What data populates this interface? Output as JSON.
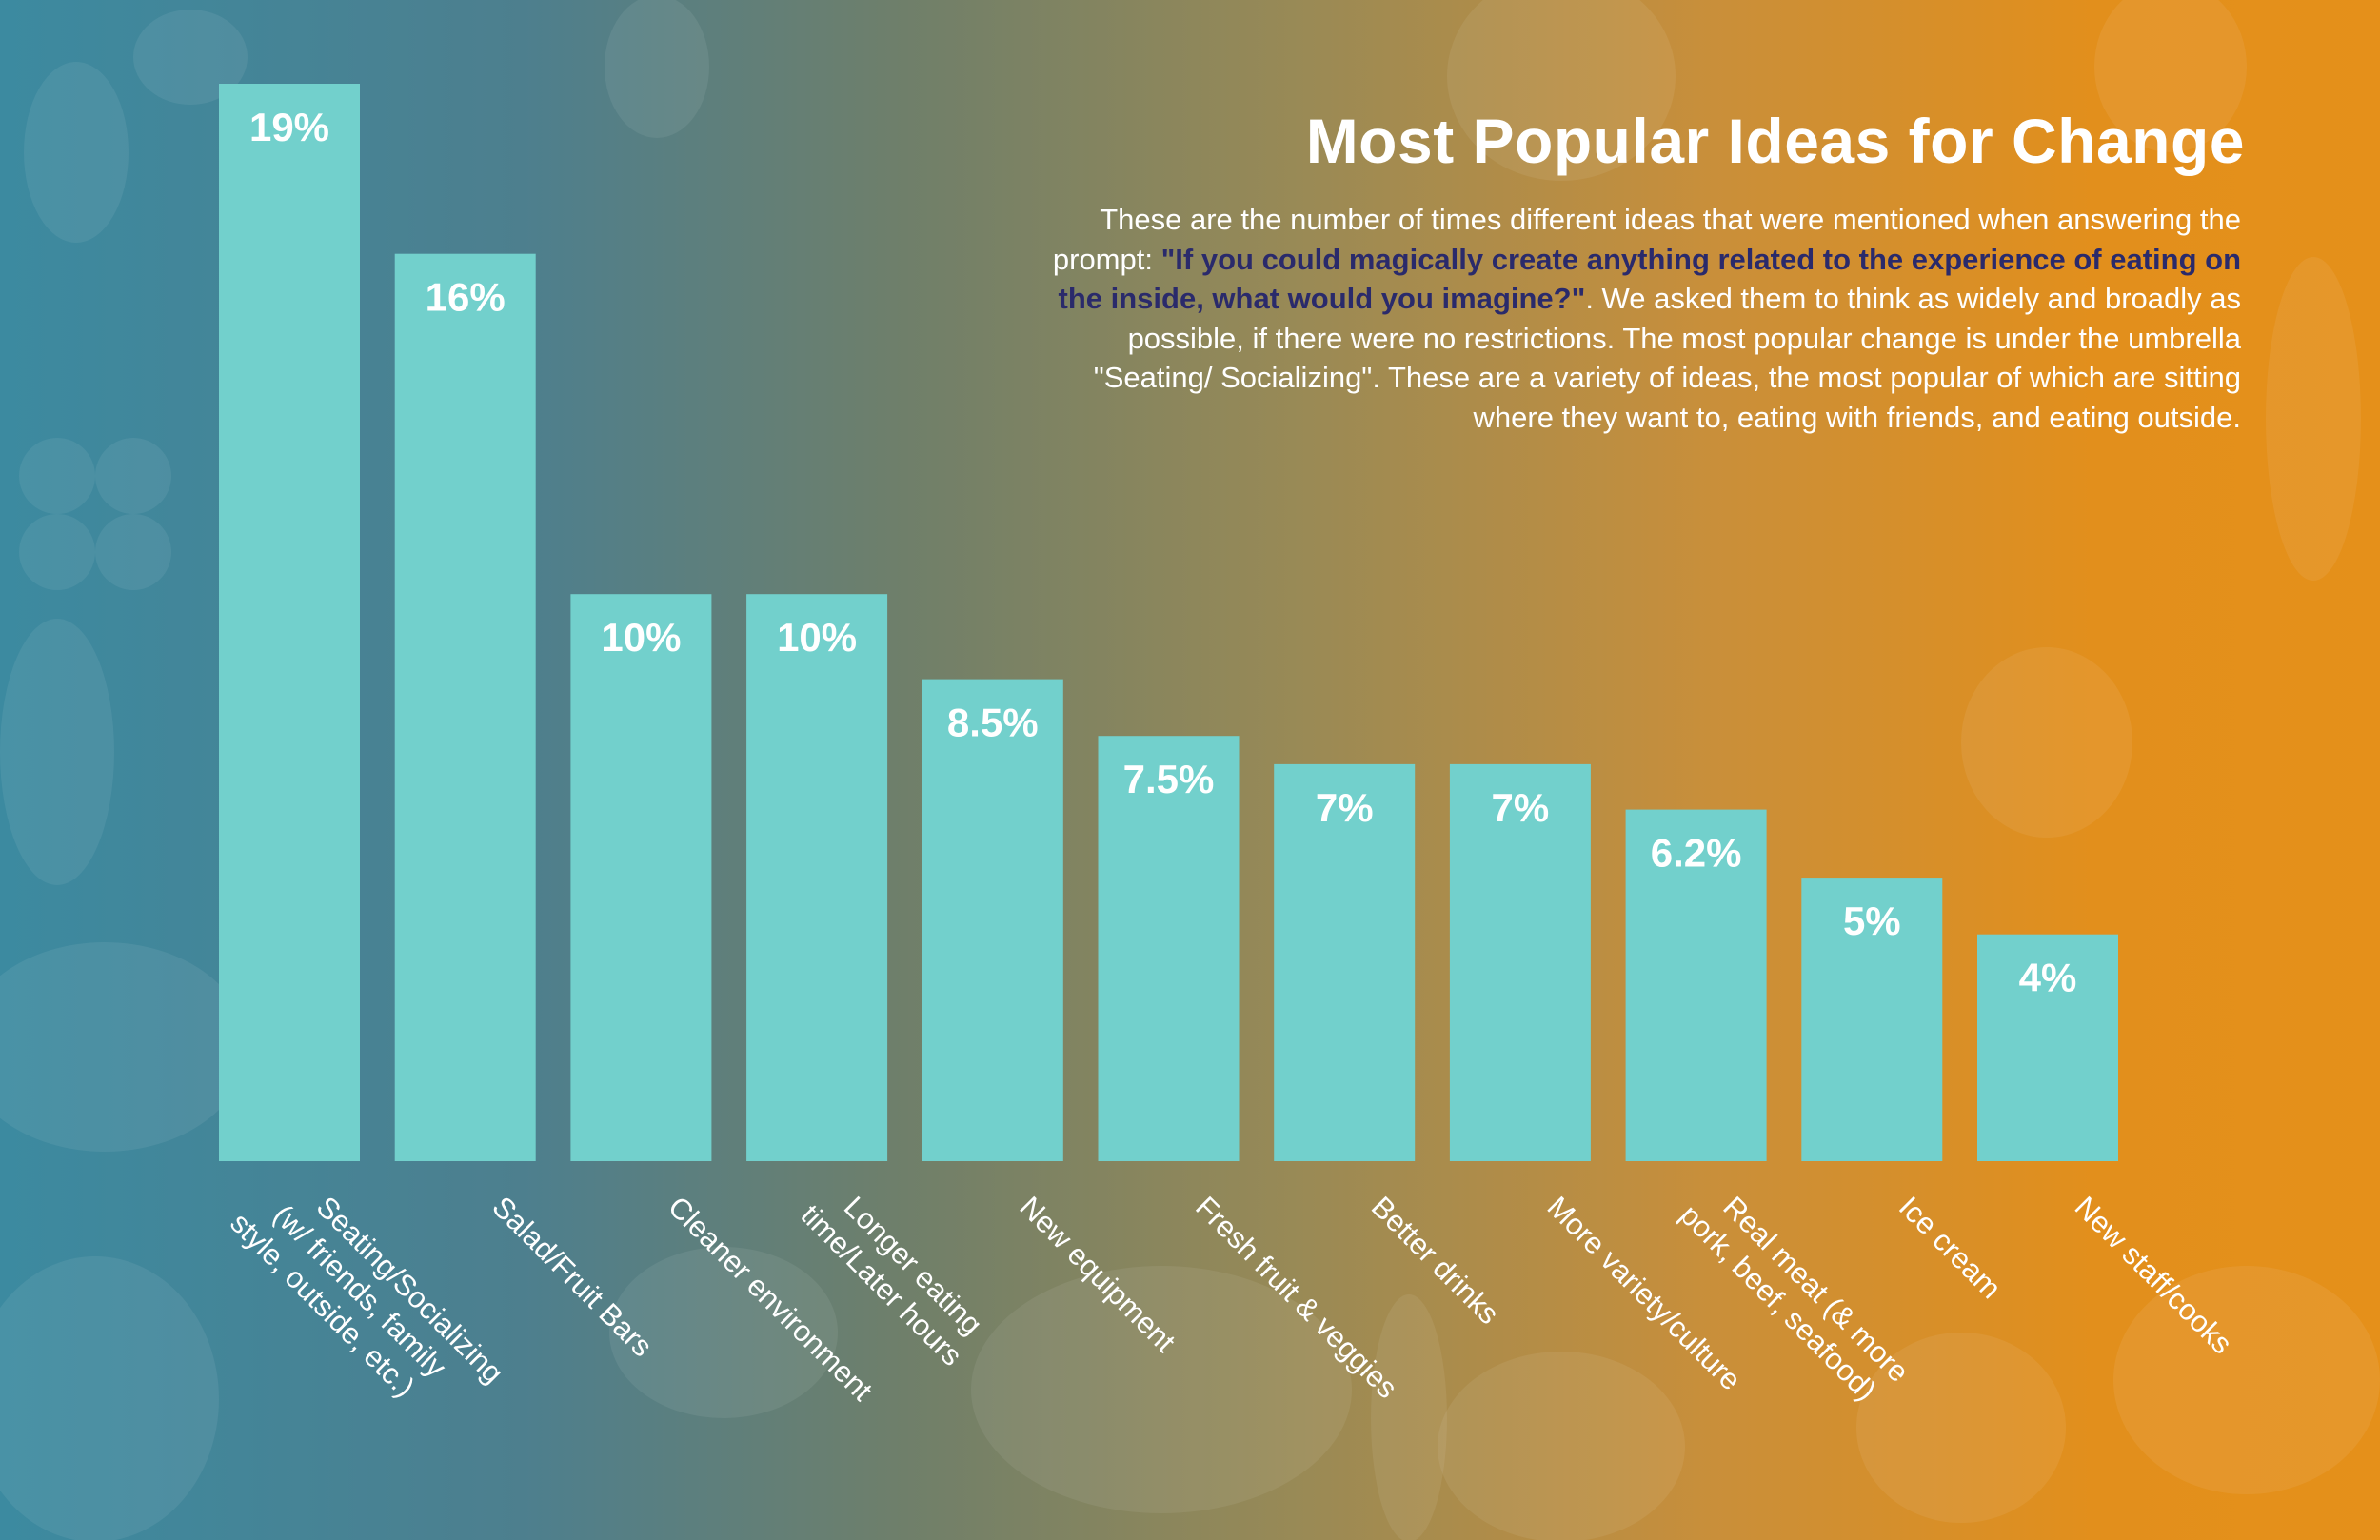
{
  "title": "Most Popular Ideas for Change",
  "description": {
    "intro": "These are the number of times different ideas that were mentioned when answering the prompt: ",
    "quote": "\"If you could magically create anything related to the experience of eating on the inside, what would you imagine?\"",
    "outro": ". We asked them to think as widely and broadly as possible, if there were no restrictions. The most popular change is under the umbrella \"Seating/ Socializing\". These are a variety of ideas, the most popular of which are sitting where they want to, eating with friends, and eating outside."
  },
  "colors": {
    "bar": "#72d0cc",
    "label": "#ffffff",
    "quote": "#2a2a6b",
    "decor": "#ffffff"
  },
  "chart_data": {
    "type": "bar",
    "title": "Most Popular Ideas for Change",
    "xlabel": "",
    "ylabel": "",
    "ylim": [
      0,
      19
    ],
    "grid": false,
    "categories": [
      [
        "Seating/Socializing",
        "(w/ friends, family",
        "style, outside, etc.)"
      ],
      [
        "Salad/Fruit Bars"
      ],
      [
        "Cleaner environment"
      ],
      [
        "Longer eating",
        "time/Later hours"
      ],
      [
        "New equipment"
      ],
      [
        "Fresh fruit & veggies"
      ],
      [
        "Better drinks"
      ],
      [
        "More variety/culture"
      ],
      [
        "Real meat (& more",
        "pork, beef, seafood)"
      ],
      [
        "Ice cream"
      ],
      [
        "New staff/cooks"
      ]
    ],
    "values": [
      19,
      16,
      10,
      10,
      8.5,
      7.5,
      7,
      7,
      6.2,
      5,
      4
    ],
    "data_labels": [
      "19%",
      "16%",
      "10%",
      "10%",
      "8.5%",
      "7.5%",
      "7%",
      "7%",
      "6.2%",
      "5%",
      "4%"
    ]
  }
}
